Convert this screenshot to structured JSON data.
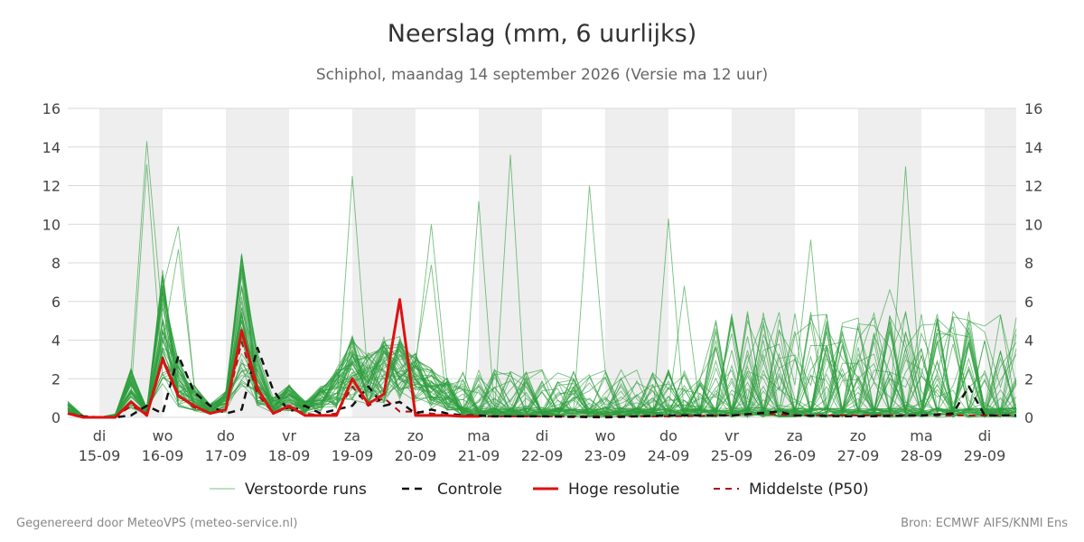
{
  "chart_data": {
    "type": "line",
    "title": "Neerslag (mm, 6 uurlijks)",
    "subtitle": "Schiphol, maandag 14 september 2026 (Versie ma 12 uur)",
    "ylim": [
      0,
      16
    ],
    "yticks": [
      0,
      2,
      4,
      6,
      8,
      10,
      12,
      14,
      16
    ],
    "grid": true,
    "legend_position": "bottom",
    "x_start": "2026-09-14T12:00",
    "x_end": "2026-09-29T12:00",
    "x_ticks": [
      {
        "date": "2026-09-15",
        "day": "di",
        "label": "15-09"
      },
      {
        "date": "2026-09-16",
        "day": "wo",
        "label": "16-09"
      },
      {
        "date": "2026-09-17",
        "day": "do",
        "label": "17-09"
      },
      {
        "date": "2026-09-18",
        "day": "vr",
        "label": "18-09"
      },
      {
        "date": "2026-09-19",
        "day": "za",
        "label": "19-09"
      },
      {
        "date": "2026-09-20",
        "day": "zo",
        "label": "20-09"
      },
      {
        "date": "2026-09-21",
        "day": "ma",
        "label": "21-09"
      },
      {
        "date": "2026-09-22",
        "day": "di",
        "label": "22-09"
      },
      {
        "date": "2026-09-23",
        "day": "wo",
        "label": "23-09"
      },
      {
        "date": "2026-09-24",
        "day": "do",
        "label": "24-09"
      },
      {
        "date": "2026-09-25",
        "day": "vr",
        "label": "25-09"
      },
      {
        "date": "2026-09-26",
        "day": "za",
        "label": "26-09"
      },
      {
        "date": "2026-09-27",
        "day": "zo",
        "label": "27-09"
      },
      {
        "date": "2026-09-28",
        "day": "ma",
        "label": "28-09"
      },
      {
        "date": "2026-09-29",
        "day": "di",
        "label": "29-09"
      }
    ],
    "shaded_days": [
      "2026-09-15",
      "2026-09-17",
      "2026-09-19",
      "2026-09-21",
      "2026-09-23",
      "2026-09-25",
      "2026-09-27",
      "2026-09-29"
    ],
    "series_styles": {
      "perturbed": {
        "color": "#2e9e3e",
        "width": 0.9,
        "opacity": 0.65
      },
      "control": {
        "color": "#111111",
        "width": 2.5,
        "dash": "8,6"
      },
      "hires": {
        "color": "#dd1111",
        "width": 3
      },
      "median": {
        "color": "#aa1111",
        "width": 2,
        "dash": "7,6"
      }
    },
    "control": {
      "name": "Controle",
      "x": [
        "2026-09-14T12:00",
        "2026-09-14T18:00",
        "2026-09-15T00:00",
        "2026-09-15T06:00",
        "2026-09-15T12:00",
        "2026-09-15T18:00",
        "2026-09-16T00:00",
        "2026-09-16T06:00",
        "2026-09-16T12:00",
        "2026-09-16T18:00",
        "2026-09-17T00:00",
        "2026-09-17T06:00",
        "2026-09-17T12:00",
        "2026-09-17T18:00",
        "2026-09-18T00:00",
        "2026-09-18T06:00",
        "2026-09-18T12:00",
        "2026-09-18T18:00",
        "2026-09-19T00:00",
        "2026-09-19T06:00",
        "2026-09-19T12:00",
        "2026-09-19T18:00",
        "2026-09-20T00:00",
        "2026-09-20T06:00",
        "2026-09-20T12:00",
        "2026-09-20T18:00",
        "2026-09-21T00:00",
        "2026-09-21T06:00",
        "2026-09-22T00:00",
        "2026-09-23T00:00",
        "2026-09-24T00:00",
        "2026-09-25T00:00",
        "2026-09-25T18:00",
        "2026-09-26T00:00",
        "2026-09-27T00:00",
        "2026-09-28T00:00",
        "2026-09-28T12:00",
        "2026-09-28T18:00",
        "2026-09-29T00:00",
        "2026-09-29T06:00",
        "2026-09-29T12:00"
      ],
      "values": [
        0.2,
        0.05,
        0,
        0,
        0.1,
        0.6,
        0.2,
        3.2,
        1.3,
        0.6,
        0.2,
        0.4,
        3.6,
        1.4,
        0.3,
        0.6,
        0.2,
        0.4,
        0.6,
        1.6,
        0.6,
        0.8,
        0.2,
        0.4,
        0.2,
        0.1,
        0.1,
        0.05,
        0.05,
        0,
        0.1,
        0.1,
        0.3,
        0.1,
        0.05,
        0.1,
        0.2,
        1.6,
        0.1,
        0.1,
        0.1
      ]
    },
    "hires": {
      "name": "Hoge resolutie",
      "x": [
        "2026-09-14T12:00",
        "2026-09-14T18:00",
        "2026-09-15T00:00",
        "2026-09-15T06:00",
        "2026-09-15T12:00",
        "2026-09-15T18:00",
        "2026-09-16T00:00",
        "2026-09-16T06:00",
        "2026-09-16T12:00",
        "2026-09-16T18:00",
        "2026-09-17T00:00",
        "2026-09-17T06:00",
        "2026-09-17T12:00",
        "2026-09-17T18:00",
        "2026-09-18T00:00",
        "2026-09-18T06:00",
        "2026-09-18T12:00",
        "2026-09-18T18:00",
        "2026-09-19T00:00",
        "2026-09-19T06:00",
        "2026-09-19T12:00",
        "2026-09-19T18:00",
        "2026-09-20T00:00",
        "2026-09-20T06:00",
        "2026-09-20T12:00",
        "2026-09-20T18:00",
        "2026-09-21T00:00"
      ],
      "values": [
        0.2,
        0,
        0,
        0,
        0.8,
        0.1,
        3.0,
        1.1,
        0.6,
        0.2,
        0.4,
        4.5,
        1.5,
        0.2,
        0.6,
        0.1,
        0.1,
        0.1,
        2.0,
        0.7,
        1.2,
        6.1,
        0.1,
        0.1,
        0.1,
        0.05,
        0.05
      ]
    },
    "median": {
      "name": "Middelste (P50)",
      "x": [
        "2026-09-14T12:00",
        "2026-09-14T18:00",
        "2026-09-15T00:00",
        "2026-09-15T06:00",
        "2026-09-15T12:00",
        "2026-09-15T18:00",
        "2026-09-16T00:00",
        "2026-09-16T06:00",
        "2026-09-16T12:00",
        "2026-09-16T18:00",
        "2026-09-17T00:00",
        "2026-09-17T06:00",
        "2026-09-17T12:00",
        "2026-09-17T18:00",
        "2026-09-18T00:00",
        "2026-09-18T06:00",
        "2026-09-18T12:00",
        "2026-09-18T18:00",
        "2026-09-19T00:00",
        "2026-09-19T06:00",
        "2026-09-19T12:00",
        "2026-09-19T18:00",
        "2026-09-20T00:00",
        "2026-09-20T06:00",
        "2026-09-20T12:00",
        "2026-09-21T00:00",
        "2026-09-22T00:00",
        "2026-09-23T00:00",
        "2026-09-24T00:00",
        "2026-09-25T00:00",
        "2026-09-25T12:00",
        "2026-09-26T00:00",
        "2026-09-27T00:00",
        "2026-09-28T00:00",
        "2026-09-29T00:00",
        "2026-09-29T12:00"
      ],
      "values": [
        0.2,
        0.05,
        0,
        0,
        0.6,
        0.2,
        3.1,
        1.2,
        0.5,
        0.2,
        0.4,
        3.9,
        1.2,
        0.2,
        0.5,
        0.2,
        0.1,
        0.2,
        1.6,
        0.6,
        1.0,
        0.3,
        0.3,
        0.2,
        0.1,
        0.05,
        0.05,
        0.05,
        0.05,
        0.1,
        0.2,
        0.1,
        0.1,
        0.1,
        0.1,
        0.1
      ]
    },
    "legend": [
      {
        "key": "perturbed",
        "label": "Verstoorde runs"
      },
      {
        "key": "control",
        "label": "Controle"
      },
      {
        "key": "hires",
        "label": "Hoge resolutie"
      },
      {
        "key": "median",
        "label": "Middelste (P50)"
      }
    ],
    "perturbed_runs": {
      "name": "Verstoorde runs",
      "member_count": 50,
      "x_start": "2026-09-14T12:00",
      "step_hours": 6,
      "peak_values": [
        14.3,
        13.6,
        12.0,
        12.5,
        13.1,
        13.0,
        11.2,
        10.3,
        10.0,
        9.9,
        8.7,
        9.2,
        7.9,
        6.8,
        6.6
      ]
    }
  },
  "footer": {
    "left": "Gegenereerd door MeteoVPS (meteo-service.nl)",
    "right": "Bron: ECMWF AIFS/KNMI Ens"
  }
}
